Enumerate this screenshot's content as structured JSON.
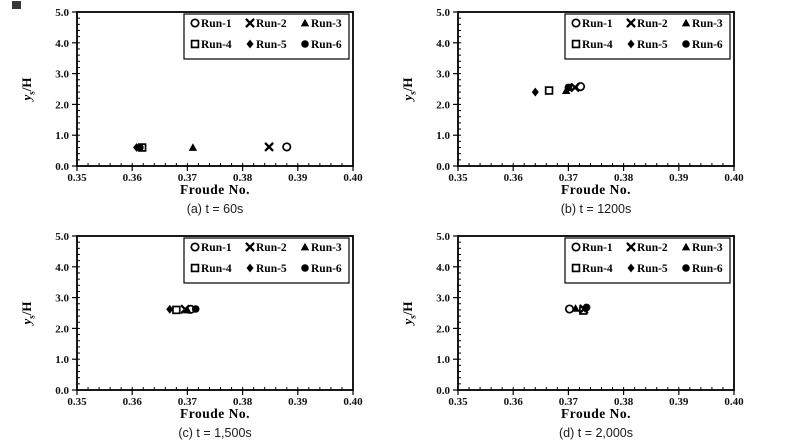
{
  "colors": {
    "foreground": "#000000",
    "background": "#ffffff"
  },
  "runs": [
    {
      "label": "Run-1",
      "marker": "open-circle"
    },
    {
      "label": "Run-2",
      "marker": "x-cross"
    },
    {
      "label": "Run-3",
      "marker": "filled-triangle"
    },
    {
      "label": "Run-4",
      "marker": "open-square"
    },
    {
      "label": "Run-5",
      "marker": "filled-diamond"
    },
    {
      "label": "Run-6",
      "marker": "filled-circle"
    }
  ],
  "chart_data": [
    {
      "id": "a",
      "type": "scatter",
      "caption": "(a) t = 60s",
      "xlabel": "Froude No.",
      "ylabel_main": "y",
      "ylabel_sub": "s",
      "ylabel_rest": "/H",
      "xlim": [
        0.35,
        0.4
      ],
      "ylim": [
        0.0,
        5.0
      ],
      "xtick_values": [
        0.35,
        0.36,
        0.37,
        0.38,
        0.39,
        0.4
      ],
      "xtick_labels": [
        "0.35",
        "0.36",
        "0.37",
        "0.38",
        "0.39",
        "0.40"
      ],
      "ytick_values": [
        0,
        1,
        2,
        3,
        4,
        5
      ],
      "ytick_labels": [
        "0.0",
        "1.0",
        "2.0",
        "3.0",
        "4.0",
        "5.0"
      ],
      "x_minor_step": 0.002,
      "y_minor_step": 0.2,
      "grid": false,
      "legend": {
        "position": "top-right",
        "columns": 3
      },
      "series": [
        {
          "name": "Run-1",
          "points": [
            [
              0.388,
              0.62
            ]
          ]
        },
        {
          "name": "Run-2",
          "points": [
            [
              0.3848,
              0.62
            ]
          ]
        },
        {
          "name": "Run-3",
          "points": [
            [
              0.371,
              0.6
            ]
          ]
        },
        {
          "name": "Run-4",
          "points": [
            [
              0.3618,
              0.6
            ]
          ]
        },
        {
          "name": "Run-5",
          "points": [
            [
              0.3608,
              0.6
            ]
          ]
        },
        {
          "name": "Run-6",
          "points": [
            [
              0.3614,
              0.6
            ]
          ]
        }
      ]
    },
    {
      "id": "b",
      "type": "scatter",
      "caption": "(b) t = 1200s",
      "xlabel": "Froude No.",
      "ylabel_main": "y",
      "ylabel_sub": "s",
      "ylabel_rest": "/H",
      "xlim": [
        0.35,
        0.4
      ],
      "ylim": [
        0.0,
        5.0
      ],
      "xtick_values": [
        0.35,
        0.36,
        0.37,
        0.38,
        0.39,
        0.4
      ],
      "xtick_labels": [
        "0.35",
        "0.36",
        "0.37",
        "0.38",
        "0.39",
        "0.40"
      ],
      "ytick_values": [
        0,
        1,
        2,
        3,
        4,
        5
      ],
      "ytick_labels": [
        "0.0",
        "1.0",
        "2.0",
        "3.0",
        "4.0",
        "5.0"
      ],
      "x_minor_step": 0.002,
      "y_minor_step": 0.2,
      "grid": false,
      "legend": {
        "position": "top-right",
        "columns": 3
      },
      "series": [
        {
          "name": "Run-1",
          "points": [
            [
              0.3722,
              2.58
            ]
          ]
        },
        {
          "name": "Run-2",
          "points": [
            [
              0.3712,
              2.55
            ]
          ]
        },
        {
          "name": "Run-3",
          "points": [
            [
              0.3696,
              2.45
            ]
          ]
        },
        {
          "name": "Run-4",
          "points": [
            [
              0.3665,
              2.45
            ]
          ]
        },
        {
          "name": "Run-5",
          "points": [
            [
              0.364,
              2.4
            ]
          ]
        },
        {
          "name": "Run-6",
          "points": [
            [
              0.37,
              2.55
            ]
          ]
        }
      ]
    },
    {
      "id": "c",
      "type": "scatter",
      "caption": "(c) t = 1,500s",
      "xlabel": "Froude No.",
      "ylabel_main": "y",
      "ylabel_sub": "s",
      "ylabel_rest": "/H",
      "xlim": [
        0.35,
        0.4
      ],
      "ylim": [
        0.0,
        5.0
      ],
      "xtick_values": [
        0.35,
        0.36,
        0.37,
        0.38,
        0.39,
        0.4
      ],
      "xtick_labels": [
        "0.35",
        "0.36",
        "0.37",
        "0.38",
        "0.39",
        "0.40"
      ],
      "ytick_values": [
        0,
        1,
        2,
        3,
        4,
        5
      ],
      "ytick_labels": [
        "0.0",
        "1.0",
        "2.0",
        "3.0",
        "4.0",
        "5.0"
      ],
      "x_minor_step": 0.002,
      "y_minor_step": 0.2,
      "grid": false,
      "legend": {
        "position": "top-right",
        "columns": 3
      },
      "series": [
        {
          "name": "Run-1",
          "points": [
            [
              0.3706,
              2.62
            ]
          ]
        },
        {
          "name": "Run-2",
          "points": [
            [
              0.3696,
              2.62
            ]
          ]
        },
        {
          "name": "Run-3",
          "points": [
            [
              0.37,
              2.6
            ]
          ]
        },
        {
          "name": "Run-4",
          "points": [
            [
              0.368,
              2.6
            ]
          ]
        },
        {
          "name": "Run-5",
          "points": [
            [
              0.3668,
              2.62
            ]
          ]
        },
        {
          "name": "Run-6",
          "points": [
            [
              0.3715,
              2.63
            ]
          ]
        }
      ]
    },
    {
      "id": "d",
      "type": "scatter",
      "caption": "(d) t = 2,000s",
      "xlabel": "Froude No.",
      "ylabel_main": "y",
      "ylabel_sub": "s",
      "ylabel_rest": "/H",
      "xlim": [
        0.35,
        0.4
      ],
      "ylim": [
        0.0,
        5.0
      ],
      "xtick_values": [
        0.35,
        0.36,
        0.37,
        0.38,
        0.39,
        0.4
      ],
      "xtick_labels": [
        "0.35",
        "0.36",
        "0.37",
        "0.38",
        "0.39",
        "0.40"
      ],
      "ytick_values": [
        0,
        1,
        2,
        3,
        4,
        5
      ],
      "ytick_labels": [
        "0.0",
        "1.0",
        "2.0",
        "3.0",
        "4.0",
        "5.0"
      ],
      "x_minor_step": 0.002,
      "y_minor_step": 0.2,
      "grid": false,
      "legend": {
        "position": "top-right",
        "columns": 3
      },
      "series": [
        {
          "name": "Run-1",
          "points": [
            [
              0.3702,
              2.63
            ]
          ]
        },
        {
          "name": "Run-2",
          "points": [
            [
              0.3728,
              2.63
            ]
          ]
        },
        {
          "name": "Run-3",
          "points": [
            [
              0.3713,
              2.65
            ]
          ]
        },
        {
          "name": "Run-4",
          "points": [
            [
              0.3727,
              2.58
            ]
          ]
        },
        {
          "name": "Run-5",
          "points": [
            [
              0.373,
              2.66
            ]
          ]
        },
        {
          "name": "Run-6",
          "points": [
            [
              0.3733,
              2.68
            ]
          ]
        }
      ]
    }
  ]
}
